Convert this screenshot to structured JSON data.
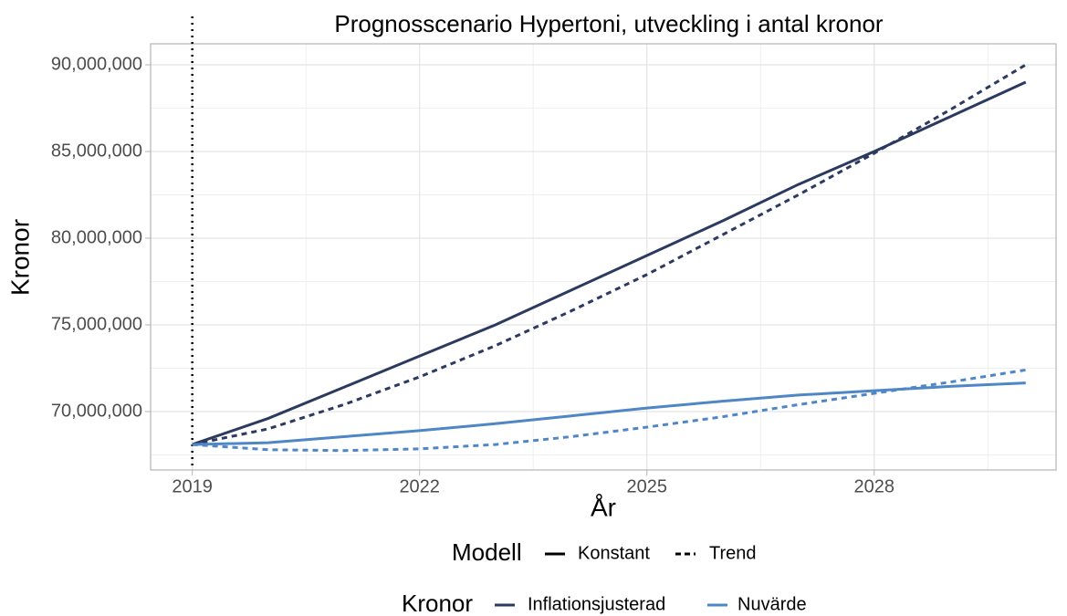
{
  "chart_data": {
    "type": "line",
    "title": "Prognosscenario Hypertoni, utveckling i antal kronor",
    "x_label": "År",
    "y_label": "Kronor",
    "x": [
      2019,
      2020,
      2021,
      2022,
      2023,
      2024,
      2025,
      2026,
      2027,
      2028,
      2029,
      2030
    ],
    "series": [
      {
        "color": "#2b3a5e",
        "dashed": false,
        "values": [
          68100000,
          69600000,
          71400000,
          73200000,
          75000000,
          77000000,
          79000000,
          81000000,
          83100000,
          85000000,
          87000000,
          89000000
        ]
      },
      {
        "color": "#2b3a5e",
        "dashed": true,
        "values": [
          68100000,
          69000000,
          70400000,
          72000000,
          73800000,
          75800000,
          77900000,
          80200000,
          82500000,
          84900000,
          87400000,
          90000000
        ]
      },
      {
        "color": "#4f86c6",
        "dashed": false,
        "values": [
          68100000,
          68200000,
          68550000,
          68900000,
          69300000,
          69750000,
          70200000,
          70600000,
          70950000,
          71200000,
          71450000,
          71650000
        ]
      },
      {
        "color": "#4f86c6",
        "dashed": true,
        "values": [
          68100000,
          67800000,
          67750000,
          67850000,
          68100000,
          68550000,
          69100000,
          69700000,
          70400000,
          71050000,
          71700000,
          72400000
        ]
      }
    ],
    "vline": 2019,
    "xlim": [
      2018.45,
      2030.4
    ],
    "xticks": [
      2019,
      2022,
      2025,
      2028
    ],
    "ylim": [
      66630000,
      91210000
    ],
    "yticks": [
      {
        "value": 70000000,
        "label": "70,000,000"
      },
      {
        "value": 75000000,
        "label": "75,000,000"
      },
      {
        "value": 80000000,
        "label": "80,000,000"
      },
      {
        "value": 85000000,
        "label": "85,000,000"
      },
      {
        "value": 90000000,
        "label": "90,000,000"
      }
    ],
    "grid": true,
    "legends": [
      {
        "title": "Modell",
        "items": [
          {
            "label": "Konstant",
            "color": "#000000",
            "dashed": false
          },
          {
            "label": "Trend",
            "color": "#000000",
            "dashed": true
          }
        ]
      },
      {
        "title": "Kronor",
        "items": [
          {
            "label": "Inflationsjusterad",
            "color": "#2b3a5e",
            "dashed": false
          },
          {
            "label": "Nuvärde",
            "color": "#4f86c6",
            "dashed": false
          }
        ]
      }
    ]
  }
}
